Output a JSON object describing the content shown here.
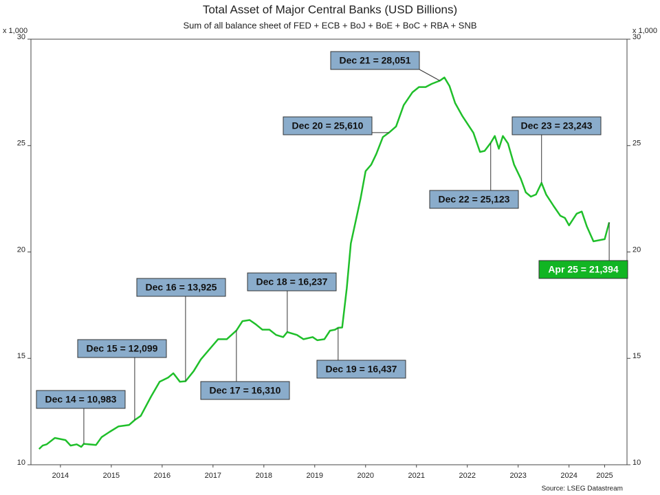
{
  "chart_data": {
    "type": "line",
    "title": "Total Asset of Major Central Banks (USD Billions)",
    "subtitle": "Sum of all balance sheet of FED + ECB + BoJ + BoE + BoC + RBA + SNB",
    "unit_label": "x 1,000",
    "source": "Source: LSEG Datastream",
    "xlim": [
      2013.92,
      2025.64
    ],
    "ylim": [
      10,
      30
    ],
    "yticks": [
      10,
      15,
      20,
      25,
      30
    ],
    "xticks": [
      {
        "value": 2014.5,
        "label": "2014"
      },
      {
        "value": 2015.5,
        "label": "2015"
      },
      {
        "value": 2016.5,
        "label": "2016"
      },
      {
        "value": 2017.5,
        "label": "2017"
      },
      {
        "value": 2018.5,
        "label": "2018"
      },
      {
        "value": 2019.5,
        "label": "2019"
      },
      {
        "value": 2020.5,
        "label": "2020"
      },
      {
        "value": 2021.5,
        "label": "2021"
      },
      {
        "value": 2022.5,
        "label": "2022"
      },
      {
        "value": 2023.5,
        "label": "2023"
      },
      {
        "value": 2024.5,
        "label": "2024"
      },
      {
        "value": 2025.2,
        "label": "2025"
      }
    ],
    "x": [
      2014.08,
      2014.15,
      2014.23,
      2014.39,
      2014.6,
      2014.7,
      2014.82,
      2014.91,
      2014.96,
      2015.2,
      2015.31,
      2015.47,
      2015.64,
      2015.85,
      2015.96,
      2016.08,
      2016.28,
      2016.45,
      2016.62,
      2016.72,
      2016.85,
      2016.96,
      2017.12,
      2017.26,
      2017.42,
      2017.6,
      2017.77,
      2017.96,
      2018.08,
      2018.22,
      2018.34,
      2018.47,
      2018.61,
      2018.74,
      2018.88,
      2018.96,
      2019.15,
      2019.28,
      2019.46,
      2019.55,
      2019.69,
      2019.8,
      2019.9,
      2019.96,
      2020.04,
      2020.13,
      2020.21,
      2020.31,
      2020.4,
      2020.5,
      2020.61,
      2020.71,
      2020.84,
      2020.96,
      2021.1,
      2021.25,
      2021.42,
      2021.55,
      2021.68,
      2021.8,
      2021.96,
      2022.05,
      2022.15,
      2022.26,
      2022.4,
      2022.62,
      2022.75,
      2022.84,
      2022.96,
      2023.04,
      2023.12,
      2023.2,
      2023.3,
      2023.42,
      2023.55,
      2023.65,
      2023.75,
      2023.85,
      2023.96,
      2024.05,
      2024.2,
      2024.33,
      2024.42,
      2024.5,
      2024.65,
      2024.75,
      2024.85,
      2024.98,
      2025.2,
      2025.29
    ],
    "series": [
      {
        "name": "Total Assets",
        "color": "#1fbf2a",
        "values": [
          10.74,
          10.9,
          10.96,
          11.26,
          11.16,
          10.9,
          10.96,
          10.84,
          10.983,
          10.93,
          11.3,
          11.55,
          11.8,
          11.87,
          12.099,
          12.3,
          13.2,
          13.9,
          14.1,
          14.3,
          13.9,
          13.925,
          14.4,
          14.95,
          15.4,
          15.9,
          15.9,
          16.31,
          16.75,
          16.8,
          16.6,
          16.35,
          16.35,
          16.1,
          16.0,
          16.237,
          16.1,
          15.9,
          16.0,
          15.85,
          15.9,
          16.3,
          16.35,
          16.437,
          16.45,
          18.3,
          20.4,
          21.5,
          22.5,
          23.8,
          24.1,
          24.6,
          25.4,
          25.61,
          25.9,
          26.9,
          27.5,
          27.75,
          27.75,
          27.9,
          28.051,
          28.2,
          27.8,
          27.0,
          26.4,
          25.6,
          24.7,
          24.75,
          25.123,
          25.45,
          24.85,
          25.45,
          25.1,
          24.1,
          23.45,
          22.8,
          22.6,
          22.7,
          23.243,
          22.7,
          22.15,
          21.7,
          21.6,
          21.25,
          21.8,
          21.9,
          21.2,
          20.5,
          20.6,
          21.394
        ]
      }
    ],
    "annotations": [
      {
        "label": "Dec 14 = 10,983",
        "x": 2014.96,
        "value": 10.983,
        "color": "#8aaccb",
        "text_color": "#111111"
      },
      {
        "label": "Dec 15 = 12,099",
        "x": 2015.96,
        "value": 12.099,
        "color": "#8aaccb",
        "text_color": "#111111"
      },
      {
        "label": "Dec 16 = 13,925",
        "x": 2016.96,
        "value": 13.925,
        "color": "#8aaccb",
        "text_color": "#111111"
      },
      {
        "label": "Dec 17 = 16,310",
        "x": 2017.96,
        "value": 16.31,
        "color": "#8aaccb",
        "text_color": "#111111"
      },
      {
        "label": "Dec 18 = 16,237",
        "x": 2018.96,
        "value": 16.237,
        "color": "#8aaccb",
        "text_color": "#111111"
      },
      {
        "label": "Dec 19 = 16,437",
        "x": 2019.96,
        "value": 16.437,
        "color": "#8aaccb",
        "text_color": "#111111"
      },
      {
        "label": "Dec 20 = 25,610",
        "x": 2020.96,
        "value": 25.61,
        "color": "#8aaccb",
        "text_color": "#111111"
      },
      {
        "label": "Dec 21 = 28,051",
        "x": 2021.96,
        "value": 28.051,
        "color": "#8aaccb",
        "text_color": "#111111"
      },
      {
        "label": "Dec 22 = 25,123",
        "x": 2022.96,
        "value": 25.123,
        "color": "#8aaccb",
        "text_color": "#111111"
      },
      {
        "label": "Dec 23 = 23,243",
        "x": 2023.96,
        "value": 23.243,
        "color": "#8aaccb",
        "text_color": "#111111"
      },
      {
        "label": "Apr 25 = 21,394",
        "x": 2025.29,
        "value": 21.394,
        "color": "#12b523",
        "text_color": "#ffffff"
      }
    ]
  }
}
